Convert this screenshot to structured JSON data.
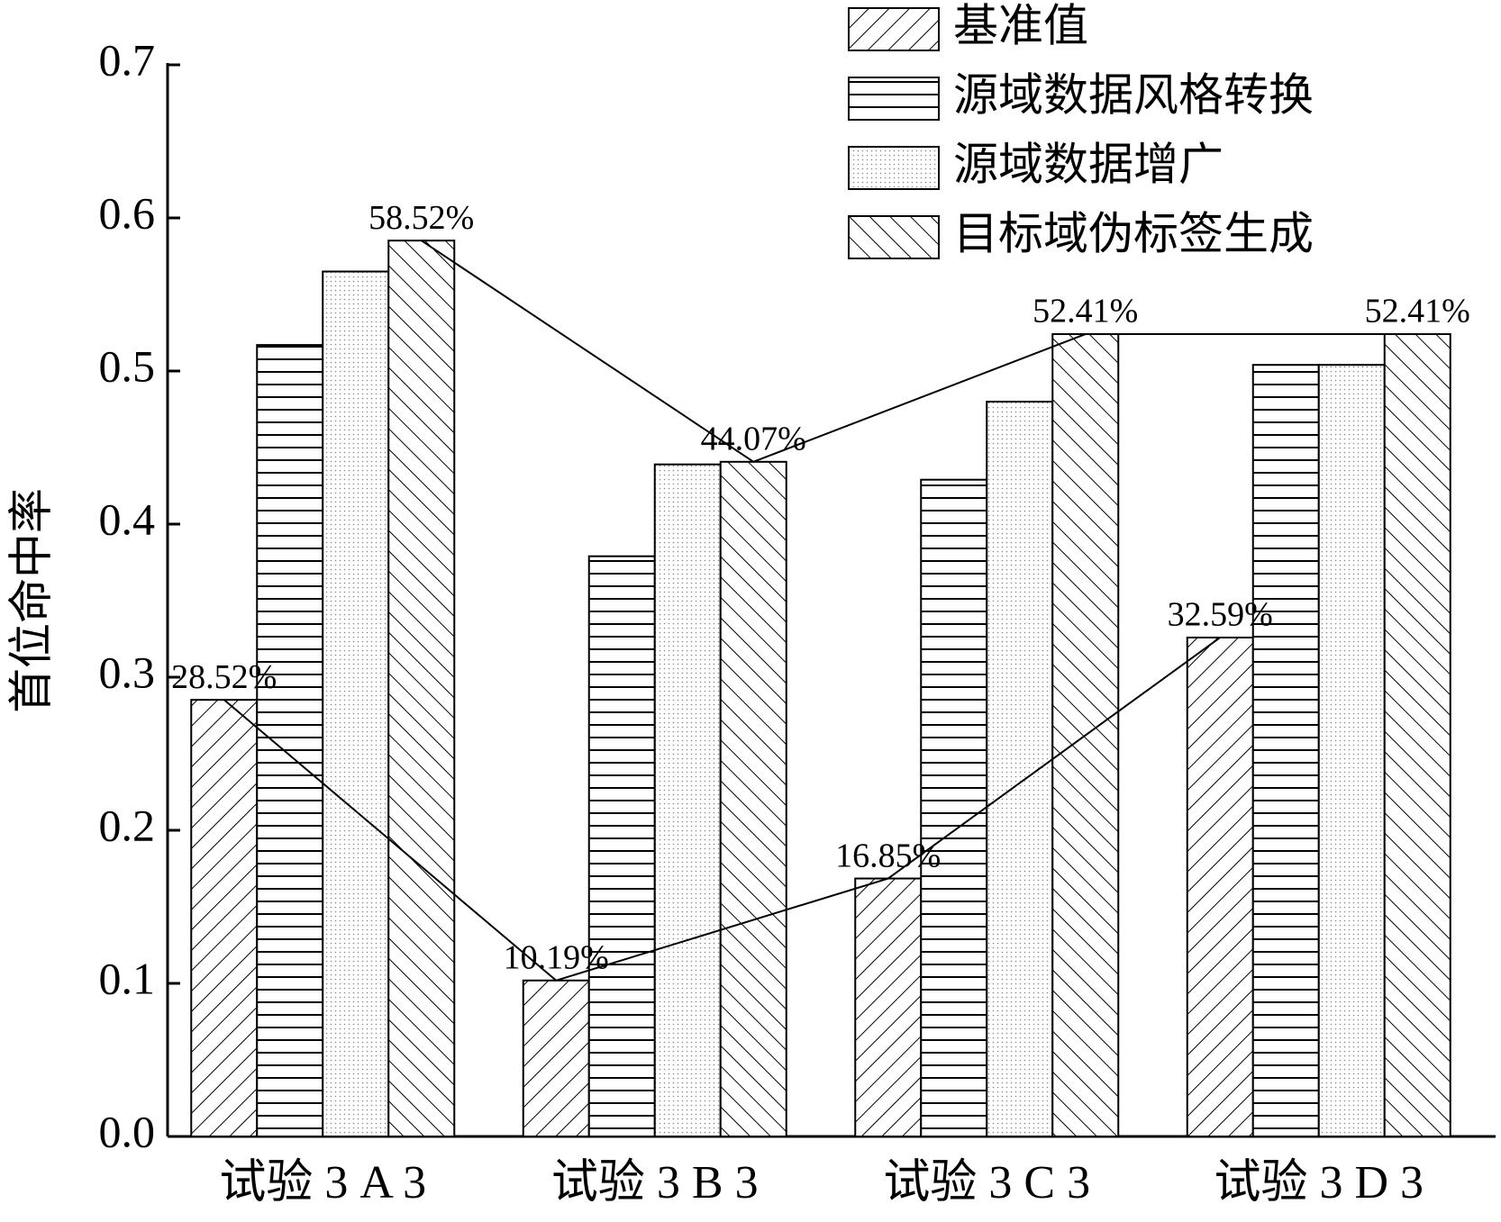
{
  "chart_data": {
    "type": "bar",
    "y_label": "首位命中率",
    "categories": [
      "试验 3 A 3",
      "试验 3 B 3",
      "试验 3 C 3",
      "试验 3 D 3"
    ],
    "series": [
      {
        "name": "基准值",
        "color": "#000000",
        "pattern": "forward-hatch",
        "values": [
          0.2852,
          0.1019,
          0.1685,
          0.3259
        ],
        "value_labels": [
          "28.52%",
          "10.19%",
          "16.85%",
          "32.59%"
        ],
        "connect_line": true
      },
      {
        "name": "源域数据风格转换",
        "color": "#000000",
        "pattern": "horizontal",
        "values": [
          0.517,
          0.379,
          0.429,
          0.504
        ]
      },
      {
        "name": "源域数据增广",
        "color": "#000000",
        "pattern": "dots",
        "values": [
          0.565,
          0.439,
          0.48,
          0.504
        ]
      },
      {
        "name": "目标域伪标签生成",
        "color": "#000000",
        "pattern": "back-hatch",
        "values": [
          0.5852,
          0.4407,
          0.5241,
          0.5241
        ],
        "value_labels": [
          "58.52%",
          "44.07%",
          "52.41%",
          "52.41%"
        ],
        "connect_line": true
      }
    ],
    "ylim": [
      0,
      0.7
    ],
    "yticks": [
      {
        "value": 0,
        "label": "0.0"
      },
      0.1,
      0.2,
      0.3,
      0.4,
      0.5,
      0.6,
      0.7
    ],
    "legend": "top-right"
  }
}
